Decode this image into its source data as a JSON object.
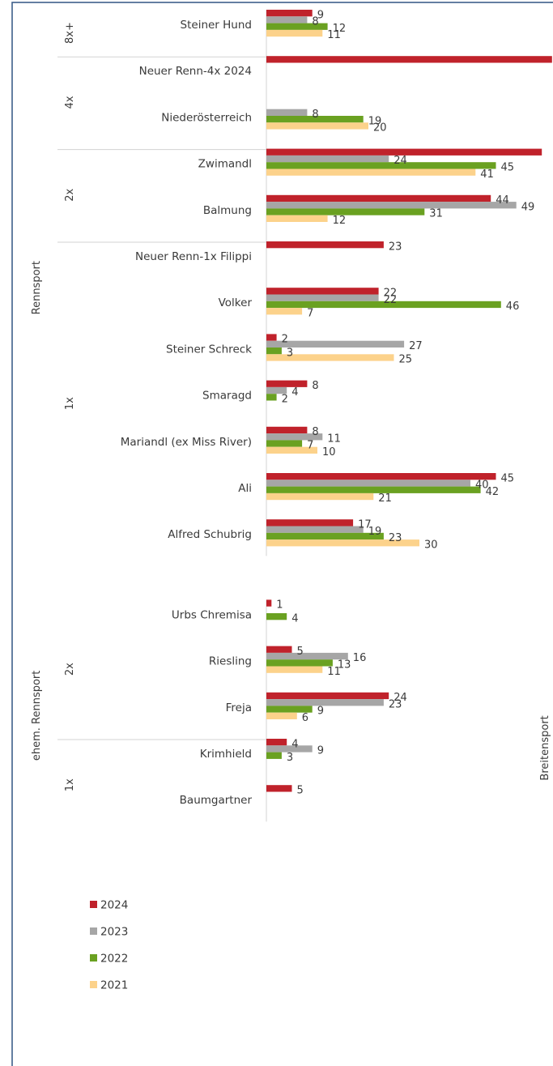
{
  "chart_data": {
    "type": "bar",
    "orientation": "horizontal",
    "series": [
      {
        "name": "2024",
        "color": "#c0222b"
      },
      {
        "name": "2023",
        "color": "#a6a6a6"
      },
      {
        "name": "2022",
        "color": "#6aa121"
      },
      {
        "name": "2021",
        "color": "#fcd28b"
      }
    ],
    "sections": [
      {
        "label": "Rennsport",
        "groups": [
          {
            "label": "8x+",
            "boats": [
              {
                "name": "Steiner Hund",
                "values": [
                  9,
                  8,
                  12,
                  11
                ]
              }
            ]
          },
          {
            "label": "4x",
            "boats": [
              {
                "name": "Neuer Renn-4x 2024",
                "values": [
                  56,
                  null,
                  null,
                  null
                ]
              },
              {
                "name": "Niederösterreich",
                "values": [
                  null,
                  8,
                  19,
                  20
                ]
              }
            ]
          },
          {
            "label": "2x",
            "boats": [
              {
                "name": "Zwimandl",
                "values": [
                  54,
                  24,
                  45,
                  41
                ]
              },
              {
                "name": "Balmung",
                "values": [
                  44,
                  49,
                  31,
                  12
                ]
              }
            ]
          },
          {
            "label": "1x",
            "boats": [
              {
                "name": "Neuer Renn-1x Filippi",
                "values": [
                  23,
                  null,
                  null,
                  null
                ]
              },
              {
                "name": "Volker",
                "values": [
                  22,
                  22,
                  46,
                  7
                ]
              },
              {
                "name": "Steiner Schreck",
                "values": [
                  2,
                  27,
                  3,
                  25
                ]
              },
              {
                "name": "Smaragd",
                "values": [
                  8,
                  4,
                  2,
                  null
                ]
              },
              {
                "name": "Mariandl (ex Miss River)",
                "values": [
                  8,
                  11,
                  7,
                  10
                ]
              },
              {
                "name": "Ali",
                "values": [
                  45,
                  40,
                  42,
                  21
                ]
              },
              {
                "name": "Alfred Schubrig",
                "values": [
                  17,
                  19,
                  23,
                  30
                ]
              }
            ]
          }
        ]
      },
      {
        "label": "ehem. Rennsport",
        "groups": [
          {
            "label": "2x",
            "boats": [
              {
                "name": "Urbs Chremisa",
                "values": [
                  1,
                  null,
                  4,
                  null
                ]
              },
              {
                "name": "Riesling",
                "values": [
                  5,
                  16,
                  13,
                  11
                ]
              },
              {
                "name": "Freja",
                "values": [
                  24,
                  23,
                  9,
                  6
                ]
              }
            ]
          },
          {
            "label": "1x",
            "boats": [
              {
                "name": "Krimhield",
                "values": [
                  4,
                  9,
                  3,
                  null
                ]
              },
              {
                "name": "Baumgartner",
                "values": [
                  5,
                  null,
                  null,
                  null
                ]
              }
            ]
          }
        ]
      }
    ],
    "side_label": "Breitensport",
    "legend": {
      "placement": "bottom-left",
      "entries": [
        "2024",
        "2023",
        "2022",
        "2021"
      ]
    },
    "grid": false
  }
}
